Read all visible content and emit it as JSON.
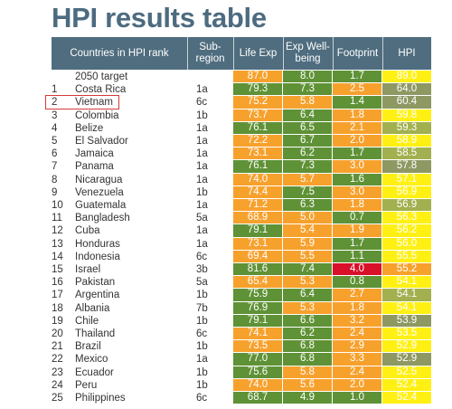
{
  "title": "HPI results table",
  "colors": {
    "header_bg": "#4f6d7e",
    "green": "#5f9236",
    "orange": "#f7a12d",
    "yellow": "#fff014",
    "olive": "#a2b04f",
    "grayolive": "#8e9863",
    "red": "#d8102a",
    "highlight": "#d63a3a"
  },
  "chart_data": {
    "type": "table",
    "title": "HPI results table",
    "columns": [
      "Countries in HPI rank",
      "Sub-region",
      "Life Exp",
      "Exp Well-being",
      "Footprint",
      "HPI"
    ],
    "target": {
      "label": "2050 target",
      "life_exp": "87.0",
      "wellbeing": "8.0",
      "footprint": "1.7",
      "hpi": "89.0"
    },
    "highlighted_country": "Vietnam",
    "rows": [
      {
        "rank": "1",
        "country": "Costa Rica",
        "region": "1a",
        "life_exp": "79.3",
        "wellbeing": "7.3",
        "footprint": "2.5",
        "hpi": "64.0",
        "colors": [
          "green",
          "green",
          "orange",
          "grayolive"
        ]
      },
      {
        "rank": "2",
        "country": "Vietnam",
        "region": "6c",
        "life_exp": "75.2",
        "wellbeing": "5.8",
        "footprint": "1.4",
        "hpi": "60.4",
        "colors": [
          "orange",
          "orange",
          "green",
          "grayolive"
        ]
      },
      {
        "rank": "3",
        "country": "Colombia",
        "region": "1b",
        "life_exp": "73.7",
        "wellbeing": "6.4",
        "footprint": "1.8",
        "hpi": "59.8",
        "colors": [
          "orange",
          "green",
          "orange",
          "yellow"
        ]
      },
      {
        "rank": "4",
        "country": "Belize",
        "region": "1a",
        "life_exp": "76.1",
        "wellbeing": "6.5",
        "footprint": "2.1",
        "hpi": "59.3",
        "colors": [
          "green",
          "green",
          "orange",
          "olive"
        ]
      },
      {
        "rank": "5",
        "country": "El Salvador",
        "region": "1a",
        "life_exp": "72.2",
        "wellbeing": "6.7",
        "footprint": "2.0",
        "hpi": "58.9",
        "colors": [
          "orange",
          "green",
          "orange",
          "yellow"
        ]
      },
      {
        "rank": "6",
        "country": "Jamaica",
        "region": "1a",
        "life_exp": "73.1",
        "wellbeing": "6.2",
        "footprint": "1.7",
        "hpi": "58.5",
        "colors": [
          "orange",
          "green",
          "green",
          "olive"
        ]
      },
      {
        "rank": "7",
        "country": "Panama",
        "region": "1a",
        "life_exp": "76.1",
        "wellbeing": "7.3",
        "footprint": "3.0",
        "hpi": "57.8",
        "colors": [
          "green",
          "green",
          "orange",
          "grayolive"
        ]
      },
      {
        "rank": "8",
        "country": "Nicaragua",
        "region": "1a",
        "life_exp": "74.0",
        "wellbeing": "5.7",
        "footprint": "1.6",
        "hpi": "57.1",
        "colors": [
          "orange",
          "orange",
          "green",
          "yellow"
        ]
      },
      {
        "rank": "9",
        "country": "Venezuela",
        "region": "1b",
        "life_exp": "74.4",
        "wellbeing": "7.5",
        "footprint": "3.0",
        "hpi": "56.9",
        "colors": [
          "orange",
          "green",
          "orange",
          "yellow"
        ]
      },
      {
        "rank": "10",
        "country": "Guatemala",
        "region": "1a",
        "life_exp": "71.2",
        "wellbeing": "6.3",
        "footprint": "1.8",
        "hpi": "56.9",
        "colors": [
          "orange",
          "green",
          "orange",
          "olive"
        ]
      },
      {
        "rank": "11",
        "country": "Bangladesh",
        "region": "5a",
        "life_exp": "68.9",
        "wellbeing": "5.0",
        "footprint": "0.7",
        "hpi": "56.3",
        "colors": [
          "orange",
          "orange",
          "green",
          "yellow"
        ]
      },
      {
        "rank": "12",
        "country": "Cuba",
        "region": "1a",
        "life_exp": "79.1",
        "wellbeing": "5.4",
        "footprint": "1.9",
        "hpi": "56.2",
        "colors": [
          "green",
          "orange",
          "orange",
          "yellow"
        ]
      },
      {
        "rank": "13",
        "country": "Honduras",
        "region": "1a",
        "life_exp": "73.1",
        "wellbeing": "5.9",
        "footprint": "1.7",
        "hpi": "56.0",
        "colors": [
          "orange",
          "orange",
          "green",
          "yellow"
        ]
      },
      {
        "rank": "14",
        "country": "Indonesia",
        "region": "6c",
        "life_exp": "69.4",
        "wellbeing": "5.5",
        "footprint": "1.1",
        "hpi": "55.5",
        "colors": [
          "orange",
          "orange",
          "green",
          "yellow"
        ]
      },
      {
        "rank": "15",
        "country": "Israel",
        "region": "3b",
        "life_exp": "81.6",
        "wellbeing": "7.4",
        "footprint": "4.0",
        "hpi": "55.2",
        "colors": [
          "green",
          "green",
          "red",
          "orange"
        ]
      },
      {
        "rank": "16",
        "country": "Pakistan",
        "region": "5a",
        "life_exp": "65.4",
        "wellbeing": "5.3",
        "footprint": "0.8",
        "hpi": "54.1",
        "colors": [
          "orange",
          "orange",
          "green",
          "yellow"
        ]
      },
      {
        "rank": "17",
        "country": "Argentina",
        "region": "1b",
        "life_exp": "75.9",
        "wellbeing": "6.4",
        "footprint": "2.7",
        "hpi": "54.1",
        "colors": [
          "green",
          "green",
          "orange",
          "olive"
        ]
      },
      {
        "rank": "18",
        "country": "Albania",
        "region": "7b",
        "life_exp": "76.9",
        "wellbeing": "5.3",
        "footprint": "1.8",
        "hpi": "54.1",
        "colors": [
          "green",
          "orange",
          "orange",
          "yellow"
        ]
      },
      {
        "rank": "19",
        "country": "Chile",
        "region": "1b",
        "life_exp": "79.1",
        "wellbeing": "6.6",
        "footprint": "3.2",
        "hpi": "53.9",
        "colors": [
          "green",
          "green",
          "orange",
          "grayolive"
        ]
      },
      {
        "rank": "20",
        "country": "Thailand",
        "region": "6c",
        "life_exp": "74.1",
        "wellbeing": "6.2",
        "footprint": "2.4",
        "hpi": "53.5",
        "colors": [
          "orange",
          "green",
          "orange",
          "yellow"
        ]
      },
      {
        "rank": "21",
        "country": "Brazil",
        "region": "1b",
        "life_exp": "73.5",
        "wellbeing": "6.8",
        "footprint": "2.9",
        "hpi": "52.9",
        "colors": [
          "orange",
          "green",
          "orange",
          "yellow"
        ]
      },
      {
        "rank": "22",
        "country": "Mexico",
        "region": "1a",
        "life_exp": "77.0",
        "wellbeing": "6.8",
        "footprint": "3.3",
        "hpi": "52.9",
        "colors": [
          "green",
          "green",
          "orange",
          "grayolive"
        ]
      },
      {
        "rank": "23",
        "country": "Ecuador",
        "region": "1b",
        "life_exp": "75.6",
        "wellbeing": "5.8",
        "footprint": "2.4",
        "hpi": "52.5",
        "colors": [
          "green",
          "orange",
          "orange",
          "yellow"
        ]
      },
      {
        "rank": "24",
        "country": "Peru",
        "region": "1b",
        "life_exp": "74.0",
        "wellbeing": "5.6",
        "footprint": "2.0",
        "hpi": "52.4",
        "colors": [
          "orange",
          "orange",
          "orange",
          "yellow"
        ]
      },
      {
        "rank": "25",
        "country": "Philippines",
        "region": "6c",
        "life_exp": "68.7",
        "wellbeing": "4.9",
        "footprint": "1.0",
        "hpi": "52.4",
        "colors": [
          "green",
          "green",
          "green",
          "yellow"
        ]
      }
    ]
  }
}
